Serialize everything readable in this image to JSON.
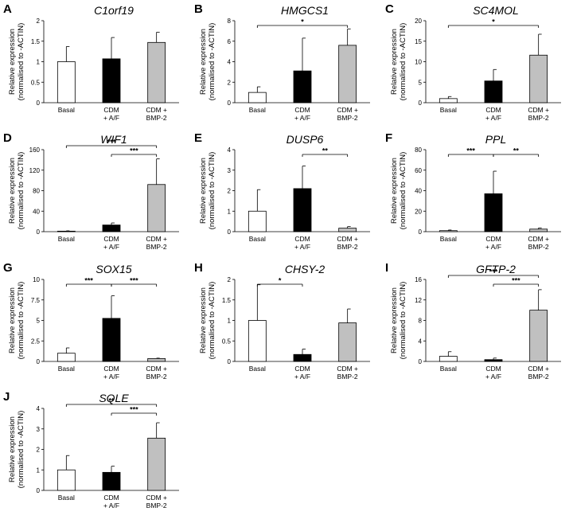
{
  "chart_data": [
    {
      "type": "bar",
      "panel": "A",
      "title": "C1orf19",
      "ylabel": [
        "Relative expression",
        "(normalised to -ACTIN)"
      ],
      "categories": [
        [
          "Basal"
        ],
        [
          "CDM",
          "+ A/F"
        ],
        [
          "CDM +",
          "BMP-2"
        ]
      ],
      "values": [
        1.0,
        1.07,
        1.47
      ],
      "errors": [
        0.37,
        0.52,
        0.25
      ],
      "ylim": [
        0,
        2
      ],
      "yticks": [
        0,
        0.5,
        1,
        1.5,
        2
      ],
      "ytick_labels": [
        "0",
        "0.5",
        "1",
        "1.5",
        "2"
      ],
      "colors": [
        "#ffffff",
        "#000000",
        "#c0c0c0"
      ],
      "significance": []
    },
    {
      "type": "bar",
      "panel": "B",
      "title": "HMGCS1",
      "ylabel": [
        "Relative expression",
        "(normalised to -ACTIN)"
      ],
      "categories": [
        [
          "Basal"
        ],
        [
          "CDM",
          "+ A/F"
        ],
        [
          "CDM +",
          "BMP-2"
        ]
      ],
      "values": [
        1.0,
        3.1,
        5.6
      ],
      "errors": [
        0.55,
        3.2,
        1.6
      ],
      "ylim": [
        0,
        8
      ],
      "yticks": [
        0,
        2,
        4,
        6,
        8
      ],
      "ytick_labels": [
        "0",
        "2",
        "4",
        "6",
        "8"
      ],
      "colors": [
        "#ffffff",
        "#000000",
        "#c0c0c0"
      ],
      "significance": [
        {
          "from": 0,
          "to": 2,
          "label": "*",
          "level": 0
        }
      ]
    },
    {
      "type": "bar",
      "panel": "C",
      "title": "SC4MOL",
      "ylabel": [
        "Relative expression",
        "(normalised to -ACTIN)"
      ],
      "categories": [
        [
          "Basal"
        ],
        [
          "CDM",
          "+ A/F"
        ],
        [
          "CDM +",
          "BMP-2"
        ]
      ],
      "values": [
        1.0,
        5.3,
        11.6
      ],
      "errors": [
        0.5,
        2.8,
        5.1
      ],
      "ylim": [
        0,
        20
      ],
      "yticks": [
        0,
        5,
        10,
        15,
        20
      ],
      "ytick_labels": [
        "0",
        "5",
        "10",
        "15",
        "20"
      ],
      "colors": [
        "#ffffff",
        "#000000",
        "#c0c0c0"
      ],
      "significance": [
        {
          "from": 0,
          "to": 2,
          "label": "*",
          "level": 0
        }
      ]
    },
    {
      "type": "bar",
      "panel": "D",
      "title": "WIF1",
      "ylabel": [
        "Relative expression",
        "(normalised to -ACTIN)"
      ],
      "categories": [
        [
          "Basal"
        ],
        [
          "CDM",
          "+ A/F"
        ],
        [
          "CDM +",
          "BMP-2"
        ]
      ],
      "values": [
        1.0,
        13.0,
        92.0
      ],
      "errors": [
        0.6,
        4.0,
        50.0
      ],
      "ylim": [
        0,
        160
      ],
      "yticks": [
        0,
        40,
        80,
        120,
        160
      ],
      "ytick_labels": [
        "0",
        "40",
        "80",
        "120",
        "160"
      ],
      "colors": [
        "#ffffff",
        "#000000",
        "#c0c0c0"
      ],
      "significance": [
        {
          "from": 0,
          "to": 2,
          "label": "***",
          "level": 1
        },
        {
          "from": 1,
          "to": 2,
          "label": "***",
          "level": 0
        }
      ]
    },
    {
      "type": "bar",
      "panel": "E",
      "title": "DUSP6",
      "ylabel": [
        "Relative expression",
        "(normalised to -ACTIN)"
      ],
      "categories": [
        [
          "Basal"
        ],
        [
          "CDM",
          "+ A/F"
        ],
        [
          "CDM +",
          "BMP-2"
        ]
      ],
      "values": [
        1.0,
        2.1,
        0.17
      ],
      "errors": [
        1.05,
        1.1,
        0.08
      ],
      "ylim": [
        0,
        4
      ],
      "yticks": [
        0,
        1,
        2,
        3,
        4
      ],
      "ytick_labels": [
        "0",
        "1",
        "2",
        "3",
        "4"
      ],
      "colors": [
        "#ffffff",
        "#000000",
        "#c0c0c0"
      ],
      "significance": [
        {
          "from": 1,
          "to": 2,
          "label": "**",
          "level": 0
        }
      ]
    },
    {
      "type": "bar",
      "panel": "F",
      "title": "PPL",
      "ylabel": [
        "Relative expression",
        "(normalised to -ACTIN)"
      ],
      "categories": [
        [
          "Basal"
        ],
        [
          "CDM",
          "+ A/F"
        ],
        [
          "CDM +",
          "BMP-2"
        ]
      ],
      "values": [
        1.0,
        37.0,
        2.5
      ],
      "errors": [
        0.6,
        22.0,
        1.2
      ],
      "ylim": [
        0,
        80
      ],
      "yticks": [
        0,
        20,
        40,
        60,
        80
      ],
      "ytick_labels": [
        "0",
        "20",
        "40",
        "60",
        "80"
      ],
      "colors": [
        "#ffffff",
        "#000000",
        "#c0c0c0"
      ],
      "significance": [
        {
          "from": 0,
          "to": 1,
          "label": "***",
          "level": 0
        },
        {
          "from": 1,
          "to": 2,
          "label": "**",
          "level": 0
        }
      ]
    },
    {
      "type": "bar",
      "panel": "G",
      "title": "SOX15",
      "ylabel": [
        "Relative expression",
        "(normalised to -ACTIN)"
      ],
      "categories": [
        [
          "Basal"
        ],
        [
          "CDM",
          "+ A/F"
        ],
        [
          "CDM +",
          "BMP-2"
        ]
      ],
      "values": [
        1.0,
        5.25,
        0.35
      ],
      "errors": [
        0.65,
        2.75,
        0.05
      ],
      "ylim": [
        0,
        10
      ],
      "yticks": [
        0,
        2.5,
        5,
        7.5,
        10
      ],
      "ytick_labels": [
        "0",
        "2.5",
        "5",
        "7.5",
        "10"
      ],
      "colors": [
        "#ffffff",
        "#000000",
        "#c0c0c0"
      ],
      "significance": [
        {
          "from": 0,
          "to": 1,
          "label": "***",
          "level": 0
        },
        {
          "from": 1,
          "to": 2,
          "label": "***",
          "level": 0
        }
      ]
    },
    {
      "type": "bar",
      "panel": "H",
      "title": "CHSY-2",
      "ylabel": [
        "Relative expression",
        "(normalised to -ACTIN)"
      ],
      "categories": [
        [
          "Basal"
        ],
        [
          "CDM",
          "+ A/F"
        ],
        [
          "CDM +",
          "BMP-2"
        ]
      ],
      "values": [
        1.0,
        0.17,
        0.94
      ],
      "errors": [
        0.87,
        0.13,
        0.34
      ],
      "ylim": [
        0,
        2
      ],
      "yticks": [
        0,
        0.5,
        1,
        1.5,
        2
      ],
      "ytick_labels": [
        "0",
        "0.5",
        "1",
        "1.5",
        "2"
      ],
      "colors": [
        "#ffffff",
        "#000000",
        "#c0c0c0"
      ],
      "significance": [
        {
          "from": 0,
          "to": 1,
          "label": "*",
          "level": 0
        }
      ]
    },
    {
      "type": "bar",
      "panel": "I",
      "title": "GFTP-2",
      "ylabel": [
        "Relative expression",
        "(normalised to -ACTIN)"
      ],
      "categories": [
        [
          "Basal"
        ],
        [
          "CDM",
          "+ A/F"
        ],
        [
          "CDM +",
          "BMP-2"
        ]
      ],
      "values": [
        1.0,
        0.35,
        10.0
      ],
      "errors": [
        0.9,
        0.3,
        4.0
      ],
      "ylim": [
        0,
        16
      ],
      "yticks": [
        0,
        4,
        8,
        12,
        16
      ],
      "ytick_labels": [
        "0",
        "4",
        "8",
        "12",
        "16"
      ],
      "colors": [
        "#ffffff",
        "#000000",
        "#c0c0c0"
      ],
      "significance": [
        {
          "from": 0,
          "to": 2,
          "label": "***",
          "level": 1
        },
        {
          "from": 1,
          "to": 2,
          "label": "***",
          "level": 0
        }
      ]
    },
    {
      "type": "bar",
      "panel": "J",
      "title": "SQLE",
      "ylabel": [
        "Relative expression",
        "(normalised to -ACTIN)"
      ],
      "categories": [
        [
          "Basal"
        ],
        [
          "CDM",
          "+ A/F"
        ],
        [
          "CDM +",
          "BMP-2"
        ]
      ],
      "values": [
        1.0,
        0.88,
        2.55
      ],
      "errors": [
        0.7,
        0.3,
        0.75
      ],
      "ylim": [
        0,
        4
      ],
      "yticks": [
        0,
        1,
        2,
        3,
        4
      ],
      "ytick_labels": [
        "0",
        "1",
        "2",
        "3",
        "4"
      ],
      "colors": [
        "#ffffff",
        "#000000",
        "#c0c0c0"
      ],
      "significance": [
        {
          "from": 0,
          "to": 2,
          "label": "**",
          "level": 1
        },
        {
          "from": 1,
          "to": 2,
          "label": "***",
          "level": 0
        }
      ]
    }
  ]
}
